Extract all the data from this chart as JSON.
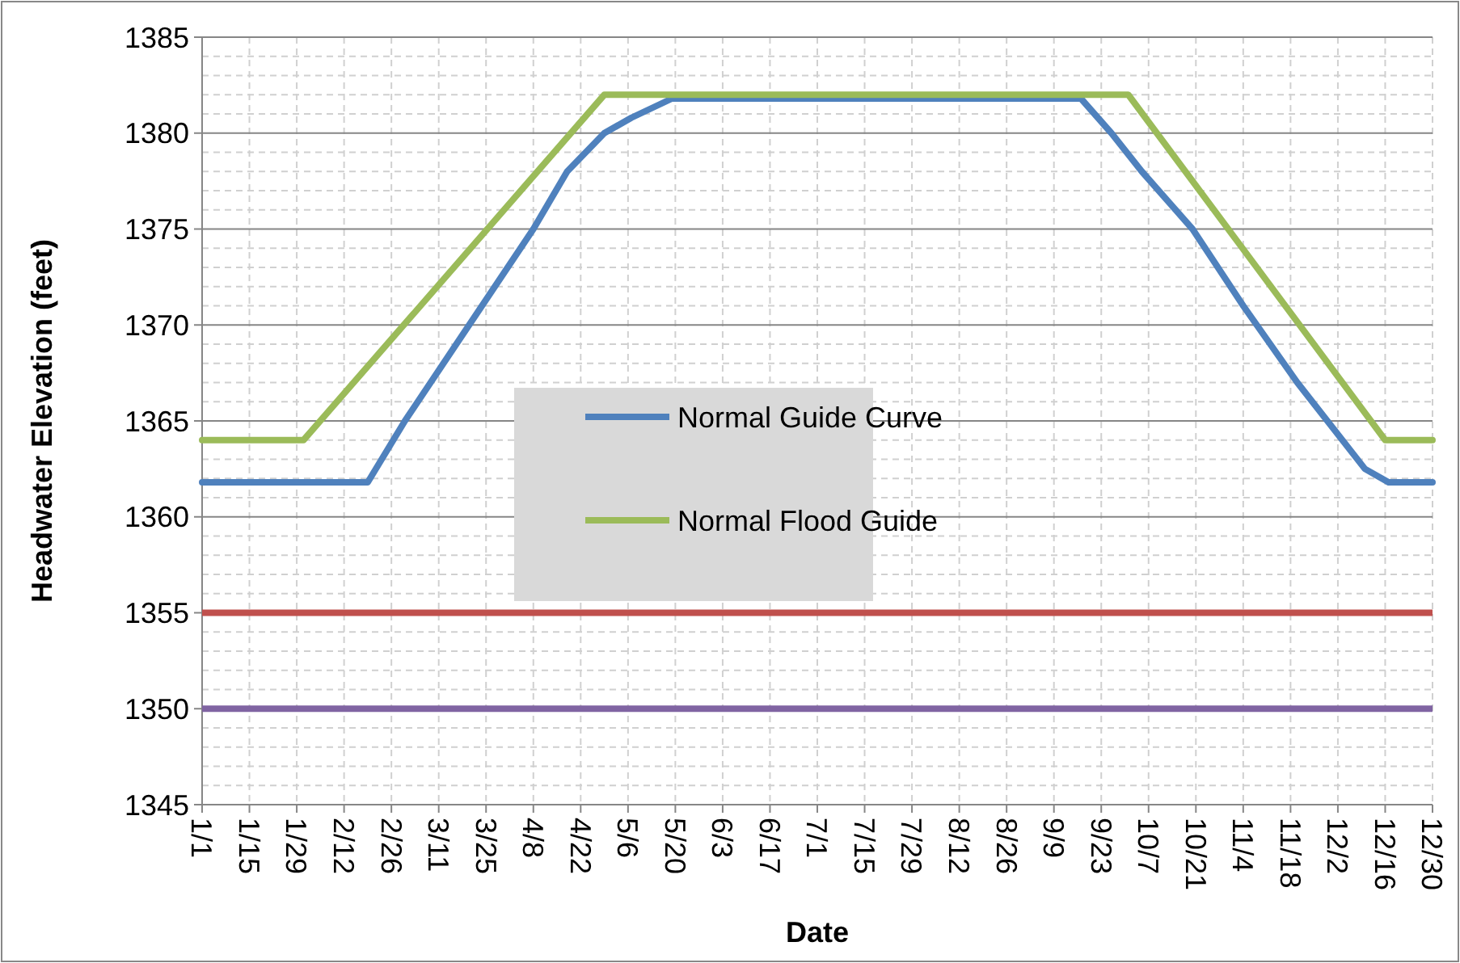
{
  "chart_data": {
    "type": "line",
    "xlabel": "Date",
    "ylabel": "Headwater Elevation (feet)",
    "ylim": [
      1345,
      1385
    ],
    "yticks": [
      1345,
      1350,
      1355,
      1360,
      1365,
      1370,
      1375,
      1380,
      1385
    ],
    "xlim": [
      "--01-01",
      "--12-30"
    ],
    "xticks": [
      {
        "value": "--01-01",
        "label": "1/1"
      },
      {
        "value": "--01-15",
        "label": "1/15"
      },
      {
        "value": "--01-29",
        "label": "1/29"
      },
      {
        "value": "--02-12",
        "label": "2/12"
      },
      {
        "value": "--02-26",
        "label": "2/26"
      },
      {
        "value": "--03-11",
        "label": "3/11"
      },
      {
        "value": "--03-25",
        "label": "3/25"
      },
      {
        "value": "--04-08",
        "label": "4/8"
      },
      {
        "value": "--04-22",
        "label": "4/22"
      },
      {
        "value": "--05-06",
        "label": "5/6"
      },
      {
        "value": "--05-20",
        "label": "5/20"
      },
      {
        "value": "--06-03",
        "label": "6/3"
      },
      {
        "value": "--06-17",
        "label": "6/17"
      },
      {
        "value": "--07-01",
        "label": "7/1"
      },
      {
        "value": "--07-15",
        "label": "7/15"
      },
      {
        "value": "--07-29",
        "label": "7/29"
      },
      {
        "value": "--08-12",
        "label": "8/12"
      },
      {
        "value": "--08-26",
        "label": "8/26"
      },
      {
        "value": "--09-09",
        "label": "9/9"
      },
      {
        "value": "--09-23",
        "label": "9/23"
      },
      {
        "value": "--10-07",
        "label": "10/7"
      },
      {
        "value": "--10-21",
        "label": "10/21"
      },
      {
        "value": "--11-04",
        "label": "11/4"
      },
      {
        "value": "--11-18",
        "label": "11/18"
      },
      {
        "value": "--12-02",
        "label": "12/2"
      },
      {
        "value": "--12-16",
        "label": "12/16"
      },
      {
        "value": "--12-30",
        "label": "12/30"
      }
    ],
    "series": [
      {
        "name": "Normal Guide Curve",
        "color": "#4f81bd",
        "x": [
          "--01-01",
          "--02-19",
          "--03-01",
          "--03-20",
          "--04-08",
          "--04-18",
          "--04-29",
          "--05-07",
          "--05-19",
          "--09-17",
          "--09-26",
          "--10-05",
          "--10-20",
          "--11-04",
          "--11-20",
          "--12-10",
          "--12-17",
          "--12-30"
        ],
        "values": [
          1361.8,
          1361.8,
          1365,
          1370,
          1375,
          1378,
          1380,
          1380.8,
          1381.8,
          1381.8,
          1380,
          1378,
          1375,
          1371,
          1367,
          1362.5,
          1361.8,
          1361.8
        ]
      },
      {
        "name": "Normal Flood Guide",
        "color": "#9bbb59",
        "x": [
          "--01-01",
          "--01-31",
          "--04-29",
          "--10-01",
          "--12-16",
          "--12-30"
        ],
        "values": [
          1364,
          1364,
          1382,
          1382,
          1364,
          1364
        ]
      }
    ],
    "ref_lines": [
      {
        "axis": "y",
        "value": 1355,
        "color": "#c0504d"
      },
      {
        "axis": "y",
        "value": 1350,
        "color": "#8064a2"
      }
    ],
    "grid": true,
    "legend": "center"
  }
}
